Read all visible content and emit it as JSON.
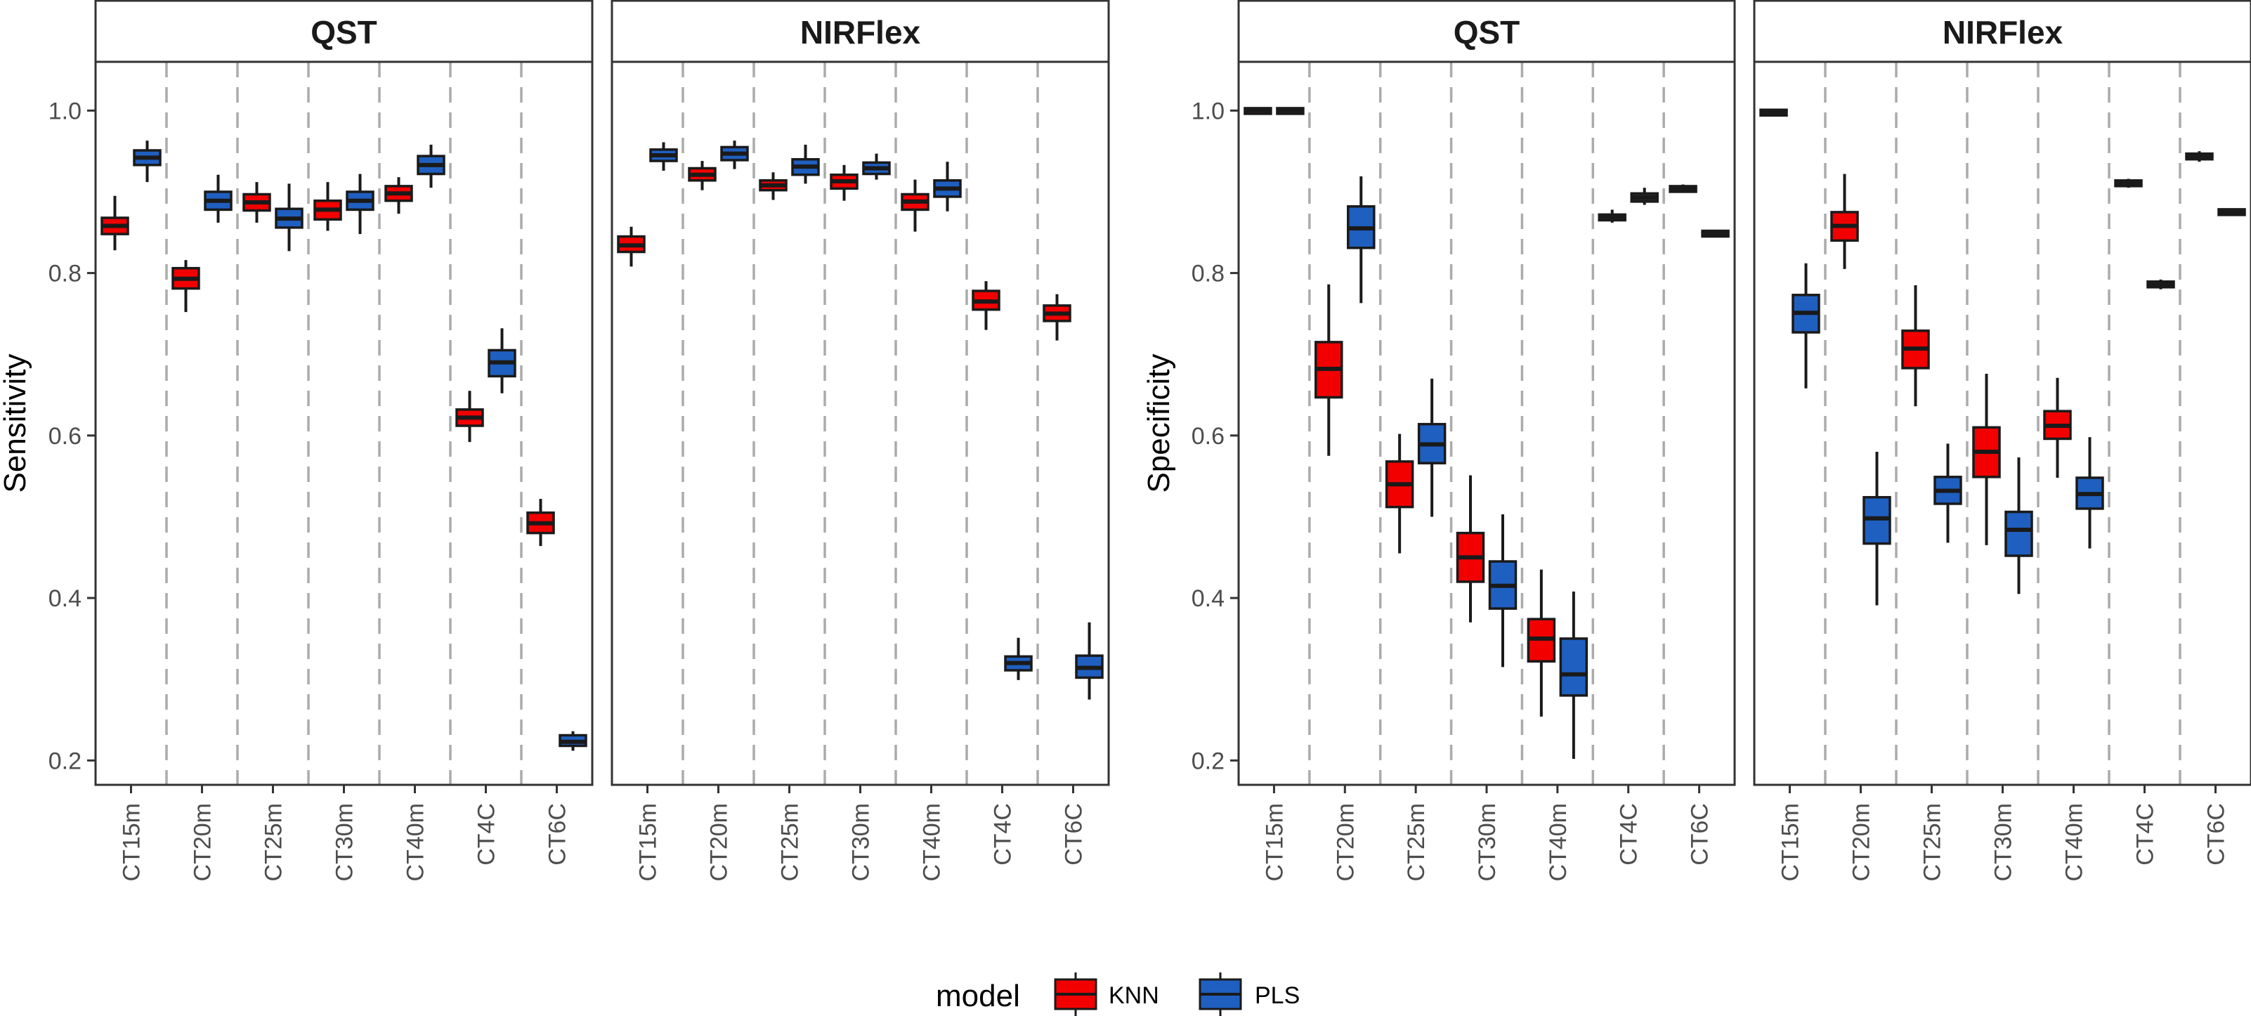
{
  "chart_data": {
    "type": "boxplot",
    "layout": "two plots side by side, each faceted into two panels",
    "categories": [
      "CT15m",
      "CT20m",
      "CT25m",
      "CT30m",
      "CT40m",
      "CT4C",
      "CT6C"
    ],
    "ylim": [
      0.17,
      1.06
    ],
    "yticks": [
      0.2,
      0.4,
      0.6,
      0.8,
      1.0
    ],
    "ytick_labels": [
      "0.2",
      "0.4",
      "0.6",
      "0.8",
      "1.0"
    ],
    "series_colors": {
      "KNN": "#F20000",
      "PLS": "#1F5FC0"
    },
    "legend": {
      "title": "model",
      "position": "bottom",
      "entries": [
        "KNN",
        "PLS"
      ]
    },
    "plots": [
      {
        "ylabel": "Sensitivity",
        "panels": [
          {
            "title": "QST",
            "series": [
              {
                "name": "KNN",
                "boxes": [
                  {
                    "min": 0.828,
                    "q1": 0.848,
                    "median": 0.858,
                    "q3": 0.868,
                    "max": 0.895
                  },
                  {
                    "min": 0.752,
                    "q1": 0.781,
                    "median": 0.793,
                    "q3": 0.806,
                    "max": 0.816
                  },
                  {
                    "min": 0.862,
                    "q1": 0.877,
                    "median": 0.887,
                    "q3": 0.897,
                    "max": 0.912
                  },
                  {
                    "min": 0.852,
                    "q1": 0.866,
                    "median": 0.878,
                    "q3": 0.889,
                    "max": 0.912
                  },
                  {
                    "min": 0.873,
                    "q1": 0.889,
                    "median": 0.898,
                    "q3": 0.907,
                    "max": 0.918
                  },
                  {
                    "min": 0.592,
                    "q1": 0.612,
                    "median": 0.622,
                    "q3": 0.632,
                    "max": 0.655
                  },
                  {
                    "min": 0.464,
                    "q1": 0.48,
                    "median": 0.492,
                    "q3": 0.505,
                    "max": 0.522
                  }
                ]
              },
              {
                "name": "PLS",
                "boxes": [
                  {
                    "min": 0.912,
                    "q1": 0.933,
                    "median": 0.942,
                    "q3": 0.951,
                    "max": 0.963
                  },
                  {
                    "min": 0.862,
                    "q1": 0.878,
                    "median": 0.889,
                    "q3": 0.9,
                    "max": 0.921
                  },
                  {
                    "min": 0.827,
                    "q1": 0.856,
                    "median": 0.867,
                    "q3": 0.879,
                    "max": 0.91
                  },
                  {
                    "min": 0.848,
                    "q1": 0.878,
                    "median": 0.889,
                    "q3": 0.9,
                    "max": 0.922
                  },
                  {
                    "min": 0.905,
                    "q1": 0.922,
                    "median": 0.933,
                    "q3": 0.944,
                    "max": 0.958
                  },
                  {
                    "min": 0.652,
                    "q1": 0.673,
                    "median": 0.69,
                    "q3": 0.705,
                    "max": 0.732
                  },
                  {
                    "min": 0.212,
                    "q1": 0.218,
                    "median": 0.223,
                    "q3": 0.231,
                    "max": 0.236
                  }
                ]
              }
            ]
          },
          {
            "title": "NIRFlex",
            "series": [
              {
                "name": "KNN",
                "boxes": [
                  {
                    "min": 0.808,
                    "q1": 0.826,
                    "median": 0.834,
                    "q3": 0.845,
                    "max": 0.857
                  },
                  {
                    "min": 0.902,
                    "q1": 0.914,
                    "median": 0.921,
                    "q3": 0.929,
                    "max": 0.938
                  },
                  {
                    "min": 0.89,
                    "q1": 0.902,
                    "median": 0.908,
                    "q3": 0.914,
                    "max": 0.924
                  },
                  {
                    "min": 0.889,
                    "q1": 0.904,
                    "median": 0.913,
                    "q3": 0.921,
                    "max": 0.933
                  },
                  {
                    "min": 0.851,
                    "q1": 0.878,
                    "median": 0.888,
                    "q3": 0.897,
                    "max": 0.915
                  },
                  {
                    "min": 0.73,
                    "q1": 0.755,
                    "median": 0.765,
                    "q3": 0.778,
                    "max": 0.79
                  },
                  {
                    "min": 0.717,
                    "q1": 0.741,
                    "median": 0.75,
                    "q3": 0.76,
                    "max": 0.774
                  }
                ]
              },
              {
                "name": "PLS",
                "boxes": [
                  {
                    "min": 0.926,
                    "q1": 0.938,
                    "median": 0.945,
                    "q3": 0.952,
                    "max": 0.961
                  },
                  {
                    "min": 0.928,
                    "q1": 0.939,
                    "median": 0.947,
                    "q3": 0.955,
                    "max": 0.963
                  },
                  {
                    "min": 0.91,
                    "q1": 0.921,
                    "median": 0.931,
                    "q3": 0.94,
                    "max": 0.958
                  },
                  {
                    "min": 0.915,
                    "q1": 0.922,
                    "median": 0.929,
                    "q3": 0.936,
                    "max": 0.947
                  },
                  {
                    "min": 0.876,
                    "q1": 0.894,
                    "median": 0.904,
                    "q3": 0.914,
                    "max": 0.937
                  },
                  {
                    "min": 0.299,
                    "q1": 0.311,
                    "median": 0.32,
                    "q3": 0.328,
                    "max": 0.351
                  },
                  {
                    "min": 0.275,
                    "q1": 0.302,
                    "median": 0.314,
                    "q3": 0.329,
                    "max": 0.37
                  }
                ]
              }
            ]
          }
        ]
      },
      {
        "ylabel": "Specificity",
        "panels": [
          {
            "title": "QST",
            "series": [
              {
                "name": "KNN",
                "boxes": [
                  {
                    "min": 0.998,
                    "q1": 0.999,
                    "median": 1.0,
                    "q3": 1.0,
                    "max": 1.0
                  },
                  {
                    "min": 0.575,
                    "q1": 0.647,
                    "median": 0.682,
                    "q3": 0.715,
                    "max": 0.786
                  },
                  {
                    "min": 0.455,
                    "q1": 0.512,
                    "median": 0.54,
                    "q3": 0.568,
                    "max": 0.602
                  },
                  {
                    "min": 0.37,
                    "q1": 0.42,
                    "median": 0.45,
                    "q3": 0.48,
                    "max": 0.551
                  },
                  {
                    "min": 0.254,
                    "q1": 0.322,
                    "median": 0.35,
                    "q3": 0.374,
                    "max": 0.435
                  }
                ]
              },
              {
                "name": "PLS",
                "boxes": [
                  {
                    "min": 0.998,
                    "q1": 0.999,
                    "median": 1.0,
                    "q3": 1.0,
                    "max": 1.0
                  },
                  {
                    "min": 0.763,
                    "q1": 0.831,
                    "median": 0.855,
                    "q3": 0.882,
                    "max": 0.919
                  },
                  {
                    "min": 0.5,
                    "q1": 0.566,
                    "median": 0.589,
                    "q3": 0.614,
                    "max": 0.67
                  },
                  {
                    "min": 0.315,
                    "q1": 0.387,
                    "median": 0.415,
                    "q3": 0.445,
                    "max": 0.503
                  },
                  {
                    "min": 0.202,
                    "q1": 0.28,
                    "median": 0.306,
                    "q3": 0.35,
                    "max": 0.408
                  }
                ]
              }
            ]
          },
          {
            "title": "NIRFlex",
            "series": [
              {
                "name": "KNN",
                "boxes": [
                  {
                    "min": 0.994,
                    "q1": 0.996,
                    "median": 0.998,
                    "q3": 0.999,
                    "max": 1.0
                  },
                  {
                    "min": 0.805,
                    "q1": 0.84,
                    "median": 0.858,
                    "q3": 0.875,
                    "max": 0.922
                  },
                  {
                    "min": 0.636,
                    "q1": 0.683,
                    "median": 0.707,
                    "q3": 0.729,
                    "max": 0.785
                  },
                  {
                    "min": 0.465,
                    "q1": 0.549,
                    "median": 0.58,
                    "q3": 0.61,
                    "max": 0.676
                  },
                  {
                    "min": 0.548,
                    "q1": 0.596,
                    "median": 0.612,
                    "q3": 0.63,
                    "max": 0.671
                  }
                ]
              },
              {
                "name": "PLS",
                "boxes": [
                  {
                    "min": 0.658,
                    "q1": 0.727,
                    "median": 0.751,
                    "q3": 0.773,
                    "max": 0.812
                  },
                  {
                    "min": 0.391,
                    "q1": 0.467,
                    "median": 0.498,
                    "q3": 0.524,
                    "max": 0.58
                  },
                  {
                    "min": 0.468,
                    "q1": 0.516,
                    "median": 0.532,
                    "q3": 0.549,
                    "max": 0.59
                  },
                  {
                    "min": 0.405,
                    "q1": 0.452,
                    "median": 0.484,
                    "q3": 0.506,
                    "max": 0.573
                  },
                  {
                    "min": 0.461,
                    "q1": 0.51,
                    "median": 0.528,
                    "q3": 0.548,
                    "max": 0.598
                  }
                ]
              }
            ]
          }
        ]
      }
    ],
    "single_boxes": [
      {
        "plot": 1,
        "panel": 0,
        "category": "CT4C",
        "name": "KNN",
        "min": 0.862,
        "q1": 0.865,
        "median": 0.868,
        "q3": 0.872,
        "max": 0.878
      },
      {
        "plot": 1,
        "panel": 0,
        "category": "CT4C",
        "name": "PLS",
        "min": 0.884,
        "q1": 0.888,
        "median": 0.893,
        "q3": 0.898,
        "max": 0.905
      },
      {
        "plot": 1,
        "panel": 0,
        "category": "CT6C",
        "name": "KNN",
        "min": 0.899,
        "q1": 0.901,
        "median": 0.903,
        "q3": 0.906,
        "max": 0.909
      },
      {
        "plot": 1,
        "panel": 0,
        "category": "CT6C",
        "name": "PLS",
        "min": 0.846,
        "q1": 0.847,
        "median": 0.848,
        "q3": 0.85,
        "max": 0.851
      },
      {
        "plot": 1,
        "panel": 1,
        "category": "CT4C",
        "name": "KNN",
        "min": 0.905,
        "q1": 0.908,
        "median": 0.91,
        "q3": 0.913,
        "max": 0.916
      },
      {
        "plot": 1,
        "panel": 1,
        "category": "CT4C",
        "name": "PLS",
        "min": 0.78,
        "q1": 0.783,
        "median": 0.786,
        "q3": 0.789,
        "max": 0.792
      },
      {
        "plot": 1,
        "panel": 1,
        "category": "CT6C",
        "name": "KNN",
        "min": 0.937,
        "q1": 0.941,
        "median": 0.944,
        "q3": 0.946,
        "max": 0.95
      },
      {
        "plot": 1,
        "panel": 1,
        "category": "CT6C",
        "name": "PLS",
        "min": 0.871,
        "q1": 0.873,
        "median": 0.875,
        "q3": 0.877,
        "max": 0.879
      }
    ]
  }
}
